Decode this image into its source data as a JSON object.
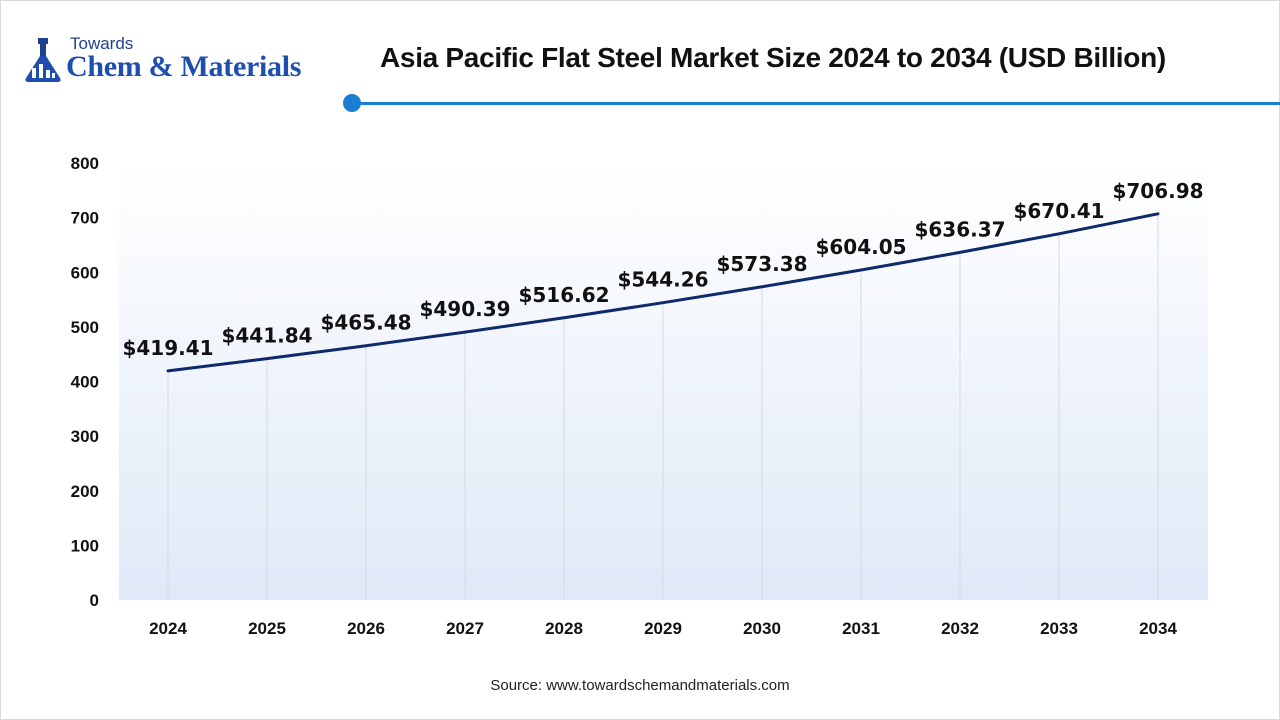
{
  "logo": {
    "line1": "Towards",
    "line2": "Chem & Materials"
  },
  "title": "Asia Pacific Flat Steel Market Size 2024 to 2034 (USD Billion)",
  "source": "Source: www.towardschemandmaterials.com",
  "colors": {
    "line": "#0f2a6b",
    "accent": "#1a7fd1",
    "plot_gradient_top": "#ffffff",
    "plot_gradient_bottom": "#dfe9f7"
  },
  "chart_data": {
    "type": "line",
    "title": "Asia Pacific Flat Steel Market Size 2024 to 2034 (USD Billion)",
    "categories": [
      "2024",
      "2025",
      "2026",
      "2027",
      "2028",
      "2029",
      "2030",
      "2031",
      "2032",
      "2033",
      "2034"
    ],
    "values": [
      419.41,
      441.84,
      465.48,
      490.39,
      516.62,
      544.26,
      573.38,
      604.05,
      636.37,
      670.41,
      706.98
    ],
    "data_labels": [
      "$419.41",
      "$441.84",
      "$465.48",
      "$490.39",
      "$516.62",
      "$544.26",
      "$573.38",
      "$604.05",
      "$636.37",
      "$670.41",
      "$706.98"
    ],
    "yticks": [
      "0",
      "100",
      "200",
      "300",
      "400",
      "500",
      "600",
      "700",
      "800"
    ],
    "ylim": [
      0,
      800
    ],
    "grid": "vertical",
    "legend": "none"
  }
}
